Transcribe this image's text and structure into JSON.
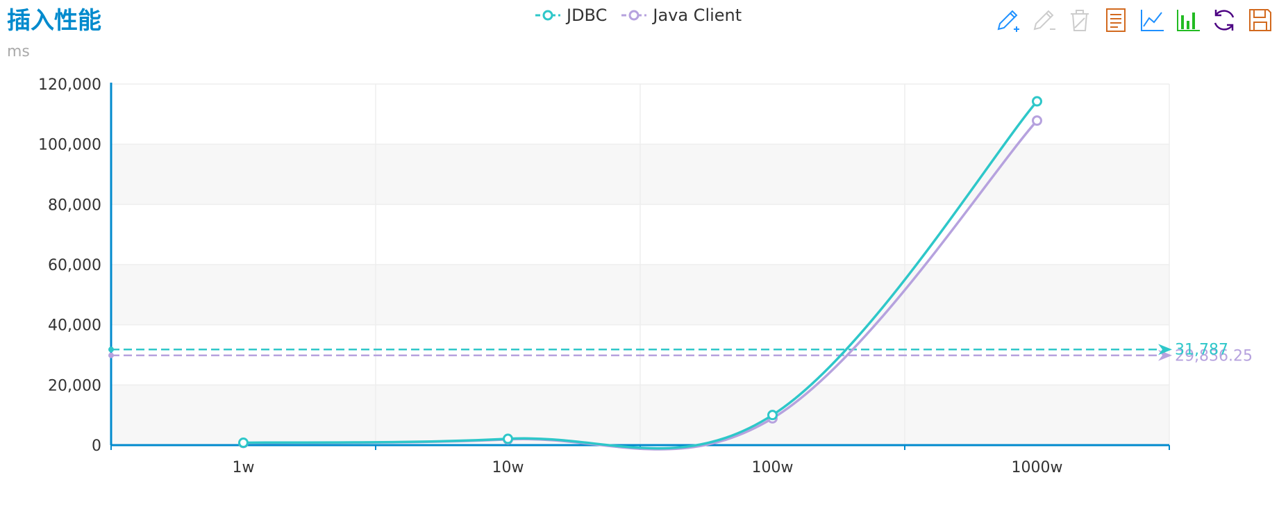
{
  "header": {
    "title": "插入性能",
    "unit": "ms"
  },
  "toolbox": [
    {
      "name": "mark-icon",
      "color": "#1e90ff"
    },
    {
      "name": "mark-undo-icon",
      "color": "#cccccc"
    },
    {
      "name": "mark-clear-icon",
      "color": "#cccccc"
    },
    {
      "name": "data-view-icon",
      "color": "#d2691e"
    },
    {
      "name": "line-chart-icon",
      "color": "#1e90ff"
    },
    {
      "name": "bar-chart-icon",
      "color": "#22bb22"
    },
    {
      "name": "restore-icon",
      "color": "#4b0082"
    },
    {
      "name": "save-image-icon",
      "color": "#d2691e"
    }
  ],
  "chart_data": {
    "type": "line",
    "title": "插入性能",
    "ylabel": "ms",
    "categories": [
      "1w",
      "10w",
      "100w",
      "1000w"
    ],
    "ylim": [
      0,
      120000
    ],
    "yticks": [
      0,
      20000,
      40000,
      60000,
      80000,
      100000,
      120000
    ],
    "ytick_labels": [
      "0",
      "20,000",
      "40,000",
      "60,000",
      "80,000",
      "100,000",
      "120,000"
    ],
    "grid": true,
    "smooth": true,
    "legend_position": "top-center",
    "series": [
      {
        "name": "JDBC",
        "color": "#2ec7c9",
        "values": [
          800,
          2100,
          10000,
          114250
        ],
        "average": 31787,
        "average_label": "31,787"
      },
      {
        "name": "Java Client",
        "color": "#b6a2de",
        "values": [
          700,
          1900,
          8900,
          107845
        ],
        "average": 29836.25,
        "average_label": "29,836.25"
      }
    ]
  }
}
